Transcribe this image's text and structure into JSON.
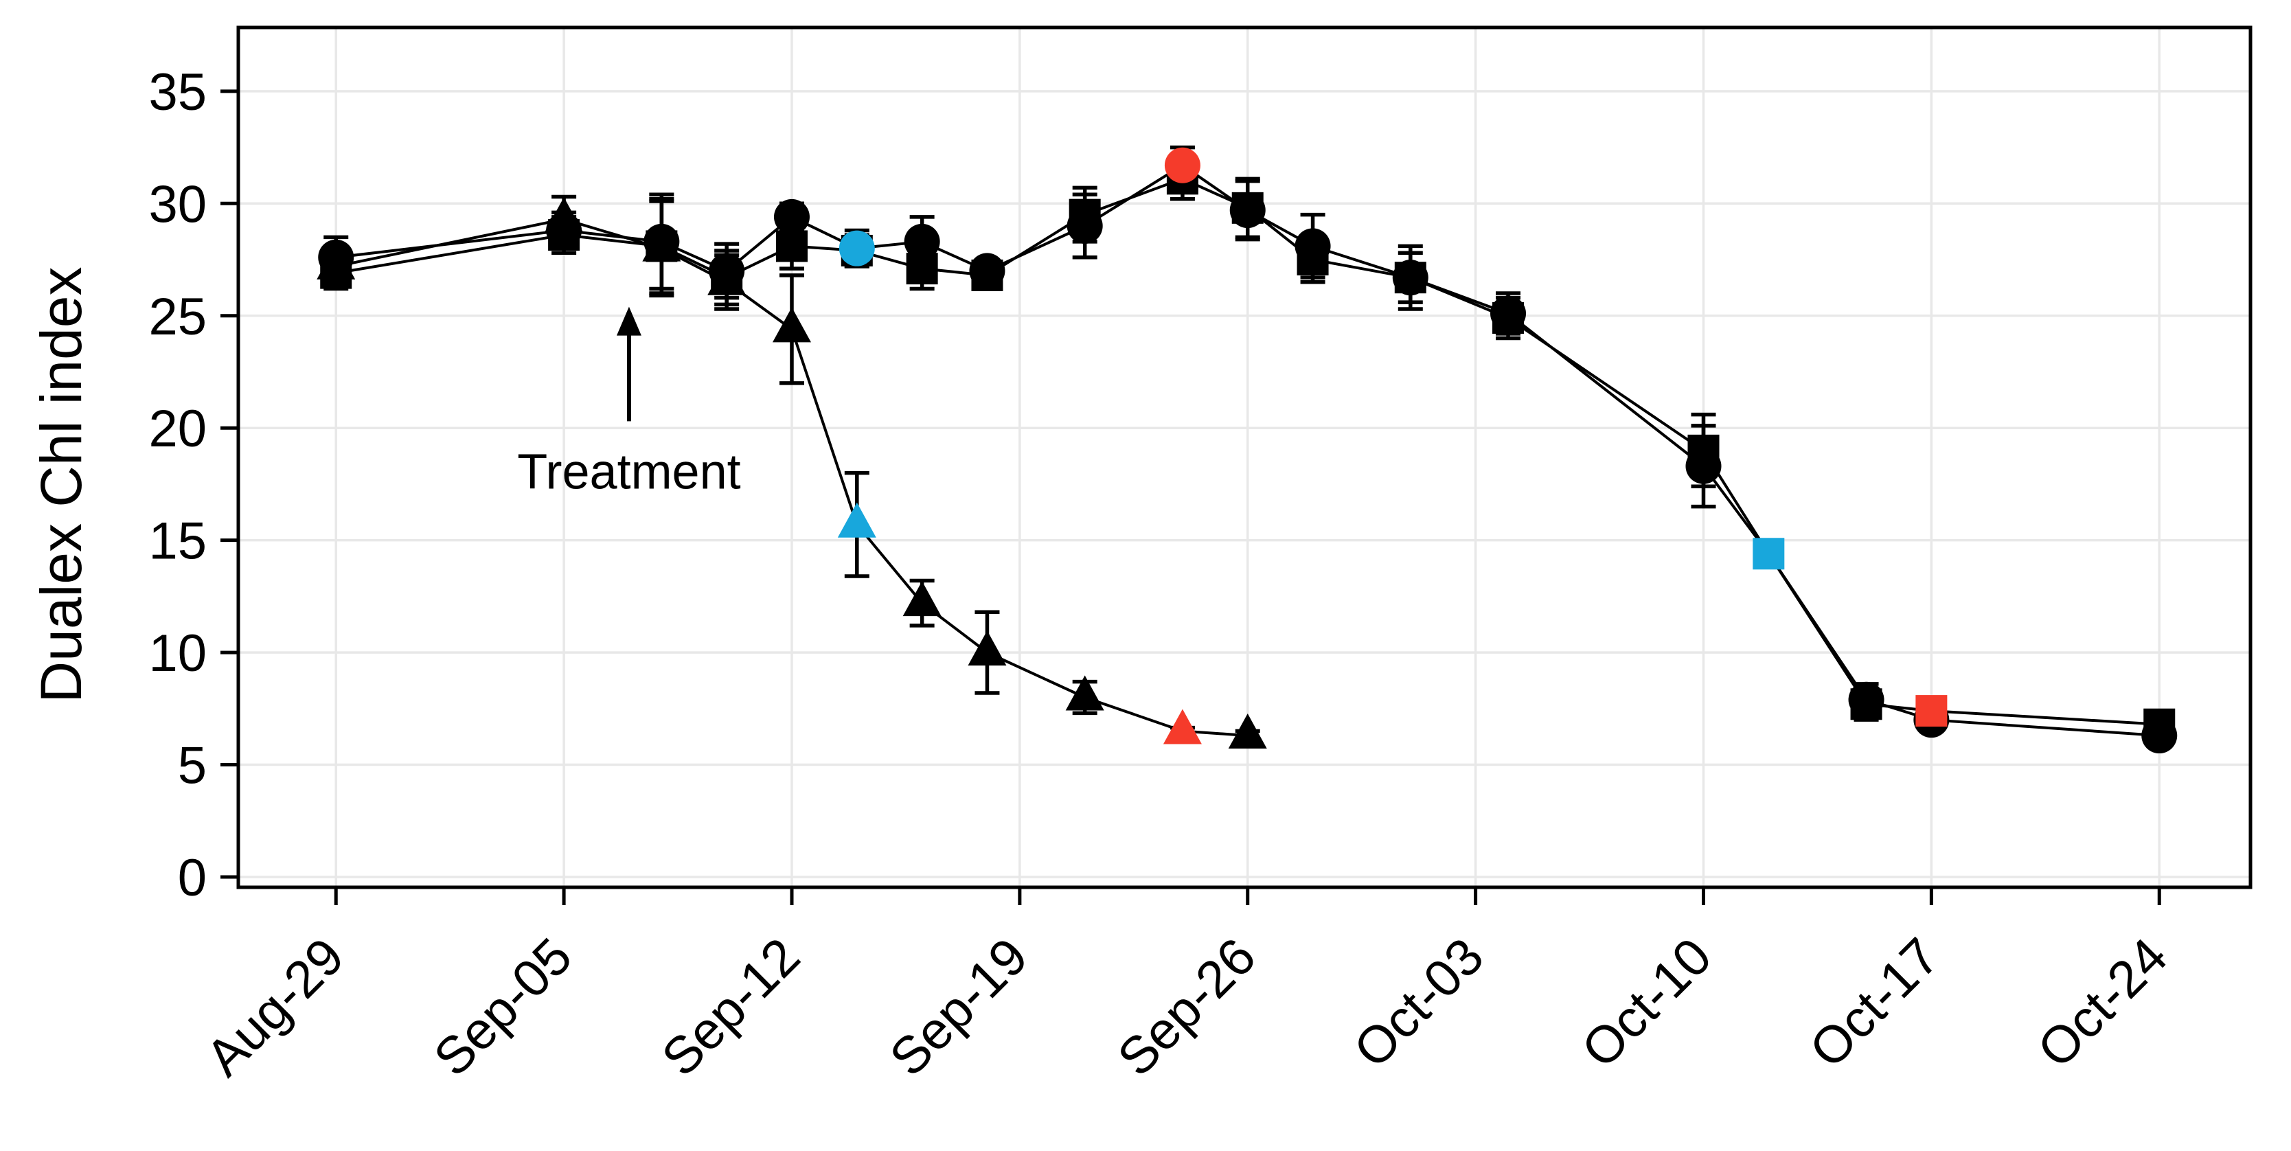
{
  "figure": {
    "background": "#ffffff",
    "plot_background": "#ffffff",
    "border_color": "#000000",
    "grid_color": "#e8e8e8",
    "axis_text_color": "#000000",
    "series_color": "#000000",
    "highlight_colors": {
      "cyan": "#18a7dc",
      "red": "#f53b2b"
    }
  },
  "annotation": {
    "label": "Treatment",
    "day": 9,
    "arrow_tip_value": 25.4,
    "arrow_base_value": 20.3,
    "label_value": 17.3
  },
  "chart_data": {
    "type": "line",
    "title": "",
    "xlabel": "",
    "ylabel": "Dualex Chl index",
    "ylim": [
      0,
      35
    ],
    "yticks": [
      0,
      5,
      10,
      15,
      20,
      25,
      30,
      35
    ],
    "x_axis_range_days": [
      -3,
      58.8
    ],
    "grid": true,
    "legend": "none",
    "xticks": [
      {
        "day": 0,
        "label": "Aug-29"
      },
      {
        "day": 7,
        "label": "Sep-05"
      },
      {
        "day": 14,
        "label": "Sep-12"
      },
      {
        "day": 21,
        "label": "Sep-19"
      },
      {
        "day": 28,
        "label": "Sep-26"
      },
      {
        "day": 35,
        "label": "Oct-03"
      },
      {
        "day": 42,
        "label": "Oct-10"
      },
      {
        "day": 49,
        "label": "Oct-17"
      },
      {
        "day": 56,
        "label": "Oct-24"
      }
    ],
    "series": [
      {
        "name": "triangles",
        "marker": "triangle",
        "points": [
          {
            "day": 0,
            "date": "Aug-29",
            "value": 27.2,
            "err": 0.8,
            "color": "black"
          },
          {
            "day": 7,
            "date": "Sep-05",
            "value": 29.3,
            "err": 1.0,
            "color": "black"
          },
          {
            "day": 10,
            "date": "Sep-08",
            "value": 28.0,
            "err": 2.1,
            "color": "black"
          },
          {
            "day": 12,
            "date": "Sep-10",
            "value": 26.5,
            "err": 1.2,
            "color": "black"
          },
          {
            "day": 14,
            "date": "Sep-12",
            "value": 24.4,
            "err": 2.4,
            "color": "black"
          },
          {
            "day": 16,
            "date": "Sep-14",
            "value": 15.7,
            "err": 2.3,
            "color": "cyan"
          },
          {
            "day": 18,
            "date": "Sep-16",
            "value": 12.2,
            "err": 1.0,
            "color": "black"
          },
          {
            "day": 20,
            "date": "Sep-18",
            "value": 10.0,
            "err": 1.8,
            "color": "black"
          },
          {
            "day": 23,
            "date": "Sep-21",
            "value": 8.0,
            "err": 0.7,
            "color": "black"
          },
          {
            "day": 26,
            "date": "Sep-24",
            "value": 6.5,
            "err": 0.15,
            "color": "red"
          },
          {
            "day": 28,
            "date": "Sep-26",
            "value": 6.3,
            "err": 0.2,
            "color": "black"
          }
        ]
      },
      {
        "name": "squares",
        "marker": "square",
        "points": [
          {
            "day": 0,
            "date": "Aug-29",
            "value": 26.9,
            "err": 0.7,
            "color": "black"
          },
          {
            "day": 7,
            "date": "Sep-05",
            "value": 28.6,
            "err": 0.8,
            "color": "black"
          },
          {
            "day": 10,
            "date": "Sep-08",
            "value": 28.1,
            "err": 2.1,
            "color": "black"
          },
          {
            "day": 12,
            "date": "Sep-10",
            "value": 26.7,
            "err": 1.2,
            "color": "black"
          },
          {
            "day": 14,
            "date": "Sep-12",
            "value": 28.1,
            "err": 1.0,
            "color": "black"
          },
          {
            "day": 16,
            "date": "Sep-14",
            "value": 27.9,
            "err": 0.7,
            "color": "black"
          },
          {
            "day": 18,
            "date": "Sep-16",
            "value": 27.1,
            "err": 0.9,
            "color": "black"
          },
          {
            "day": 20,
            "date": "Sep-18",
            "value": 26.8,
            "err": 0.4,
            "color": "black"
          },
          {
            "day": 23,
            "date": "Sep-21",
            "value": 29.5,
            "err": 1.2,
            "color": "black"
          },
          {
            "day": 26,
            "date": "Sep-24",
            "value": 31.1,
            "err": 0.9,
            "color": "black"
          },
          {
            "day": 28,
            "date": "Sep-26",
            "value": 29.8,
            "err": 1.3,
            "color": "black"
          },
          {
            "day": 30,
            "date": "Sep-28",
            "value": 27.5,
            "err": 1.0,
            "color": "black"
          },
          {
            "day": 33,
            "date": "Oct-01",
            "value": 26.7,
            "err": 1.4,
            "color": "black"
          },
          {
            "day": 36,
            "date": "Oct-04",
            "value": 24.9,
            "err": 0.9,
            "color": "black"
          },
          {
            "day": 42,
            "date": "Oct-10",
            "value": 19.0,
            "err": 1.6,
            "color": "black"
          },
          {
            "day": 44,
            "date": "Oct-12",
            "value": 14.4,
            "err": 0,
            "color": "cyan"
          },
          {
            "day": 47,
            "date": "Oct-15",
            "value": 7.7,
            "err": 0.7,
            "color": "black"
          },
          {
            "day": 49,
            "date": "Oct-17",
            "value": 7.4,
            "err": 0,
            "color": "red"
          },
          {
            "day": 56,
            "date": "Oct-24",
            "value": 6.8,
            "err": 0.35,
            "color": "black"
          }
        ]
      },
      {
        "name": "circles",
        "marker": "circle",
        "points": [
          {
            "day": 0,
            "date": "Aug-29",
            "value": 27.6,
            "err": 0.9,
            "color": "black"
          },
          {
            "day": 7,
            "date": "Sep-05",
            "value": 28.8,
            "err": 0.8,
            "color": "black"
          },
          {
            "day": 10,
            "date": "Sep-08",
            "value": 28.3,
            "err": 2.1,
            "color": "black"
          },
          {
            "day": 12,
            "date": "Sep-10",
            "value": 27.0,
            "err": 1.2,
            "color": "black"
          },
          {
            "day": 14,
            "date": "Sep-12",
            "value": 29.4,
            "err": 0.6,
            "color": "black"
          },
          {
            "day": 16,
            "date": "Sep-14",
            "value": 28.0,
            "err": 0.8,
            "color": "cyan"
          },
          {
            "day": 18,
            "date": "Sep-16",
            "value": 28.3,
            "err": 1.1,
            "color": "black"
          },
          {
            "day": 20,
            "date": "Sep-18",
            "value": 27.0,
            "err": 0.4,
            "color": "black"
          },
          {
            "day": 23,
            "date": "Sep-21",
            "value": 29.0,
            "err": 1.4,
            "color": "black"
          },
          {
            "day": 26,
            "date": "Sep-24",
            "value": 31.7,
            "err": 0.8,
            "color": "red"
          },
          {
            "day": 28,
            "date": "Sep-26",
            "value": 29.7,
            "err": 1.3,
            "color": "black"
          },
          {
            "day": 30,
            "date": "Sep-28",
            "value": 28.1,
            "err": 1.4,
            "color": "black"
          },
          {
            "day": 33,
            "date": "Oct-01",
            "value": 26.7,
            "err": 1.1,
            "color": "black"
          },
          {
            "day": 36,
            "date": "Oct-04",
            "value": 25.1,
            "err": 0.9,
            "color": "black"
          },
          {
            "day": 42,
            "date": "Oct-10",
            "value": 18.3,
            "err": 1.8,
            "color": "black"
          },
          {
            "day": 44,
            "date": "Oct-12",
            "value": 14.4,
            "err": 0,
            "color": "black",
            "hidden": true
          },
          {
            "day": 47,
            "date": "Oct-15",
            "value": 7.9,
            "err": 0.7,
            "color": "black"
          },
          {
            "day": 49,
            "date": "Oct-17",
            "value": 7.0,
            "err": 0.25,
            "color": "black"
          },
          {
            "day": 56,
            "date": "Oct-24",
            "value": 6.3,
            "err": 0.3,
            "color": "black"
          }
        ]
      }
    ]
  }
}
